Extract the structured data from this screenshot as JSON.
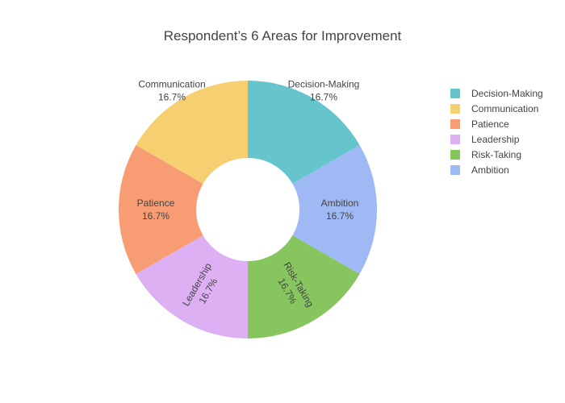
{
  "chart_data": {
    "type": "pie",
    "hole": true,
    "title": "Respondent’s 6 Areas for Improvement",
    "slices": [
      {
        "label": "Decision-Making",
        "value": 1,
        "percent": "16.7%",
        "color": "#66C5CC",
        "label_position": "outside"
      },
      {
        "label": "Ambition",
        "value": 1,
        "percent": "16.7%",
        "color": "#9EB9F3",
        "label_position": "inside"
      },
      {
        "label": "Risk-Taking",
        "value": 1,
        "percent": "16.7%",
        "color": "#87C55F",
        "label_position": "inside-radial"
      },
      {
        "label": "Leadership",
        "value": 1,
        "percent": "16.7%",
        "color": "#DCB0F2",
        "label_position": "inside-radial"
      },
      {
        "label": "Patience",
        "value": 1,
        "percent": "16.7%",
        "color": "#F89C74",
        "label_position": "inside"
      },
      {
        "label": "Communication",
        "value": 1,
        "percent": "16.7%",
        "color": "#F6CF71",
        "label_position": "outside"
      }
    ],
    "legend": {
      "placement": "top-right",
      "items": [
        "Decision-Making",
        "Communication",
        "Patience",
        "Leadership",
        "Risk-Taking",
        "Ambition"
      ]
    },
    "direction": "clockwise",
    "start": "top"
  }
}
